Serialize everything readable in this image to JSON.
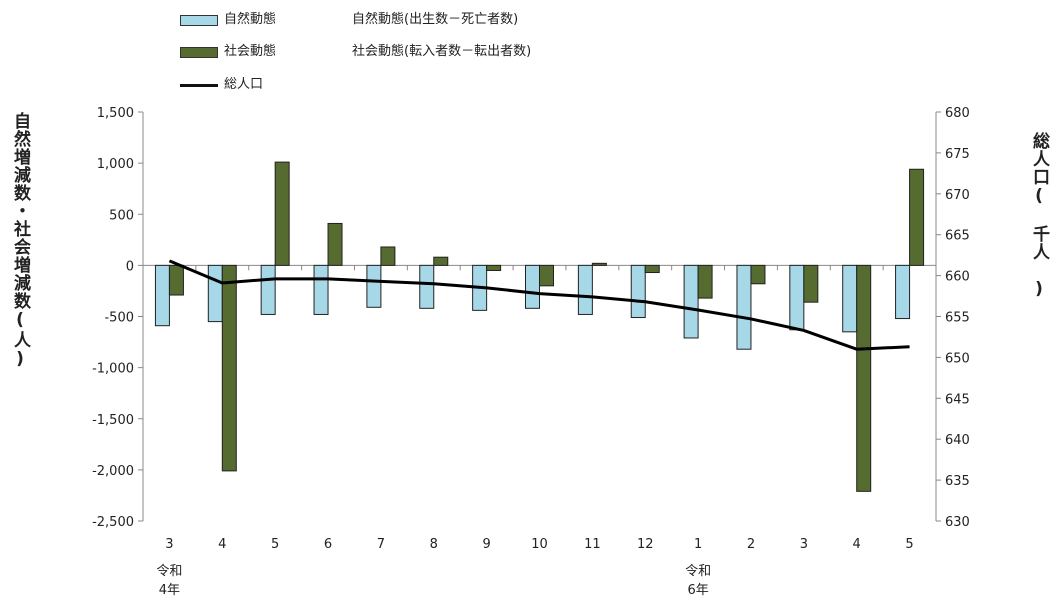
{
  "legend": [
    {
      "name": "自然動態",
      "desc": "自然動態(出生数－死亡者数)",
      "color": "#a6d8e8"
    },
    {
      "name": "社会動態",
      "desc": "社会動態(転入者数－転出者数)",
      "color": "#556b2f"
    },
    {
      "name": "総人口",
      "desc": "",
      "color": "#000000"
    }
  ],
  "axes": {
    "left_label": "自然増減数・社会増減数(人)",
    "right_label": "総人口(　千人　)"
  },
  "era_labels": [
    {
      "text": "令和\n4年",
      "at_index": 0
    },
    {
      "text": "令和\n6年",
      "at_index": 10
    }
  ],
  "chart_data": {
    "type": "bar",
    "categories": [
      "3",
      "4",
      "5",
      "6",
      "7",
      "8",
      "9",
      "10",
      "11",
      "12",
      "1",
      "2",
      "3",
      "4",
      "5"
    ],
    "series": [
      {
        "name": "自然動態",
        "type": "bar",
        "axis": "left",
        "color": "#a6d8e8",
        "values": [
          -590,
          -550,
          -480,
          -480,
          -410,
          -420,
          -440,
          -420,
          -480,
          -510,
          -710,
          -820,
          -630,
          -650,
          -520
        ]
      },
      {
        "name": "社会動態",
        "type": "bar",
        "axis": "left",
        "color": "#556b2f",
        "values": [
          -290,
          -2010,
          1010,
          410,
          180,
          80,
          -50,
          -200,
          20,
          -70,
          -320,
          -180,
          -360,
          -2210,
          940
        ]
      },
      {
        "name": "総人口",
        "type": "line",
        "axis": "right",
        "color": "#000000",
        "values": [
          661.8,
          659.1,
          659.6,
          659.6,
          659.3,
          659.0,
          658.5,
          657.8,
          657.4,
          656.8,
          655.8,
          654.7,
          653.3,
          651.0,
          651.3
        ]
      }
    ],
    "ylim_left": [
      -2500,
      1500
    ],
    "yticks_left": [
      1500,
      1000,
      500,
      0,
      -500,
      -1000,
      -1500,
      -2000,
      -2500
    ],
    "yticks_left_labels": [
      "1,500",
      "1,000",
      "500",
      "0",
      "-500",
      "-1,000",
      "-1,500",
      "-2,000",
      "-2,500"
    ],
    "ylim_right": [
      630,
      680
    ],
    "yticks_right": [
      680,
      675,
      670,
      665,
      660,
      655,
      650,
      645,
      640,
      635,
      630
    ],
    "grid": false,
    "legend_position": "top-left"
  }
}
